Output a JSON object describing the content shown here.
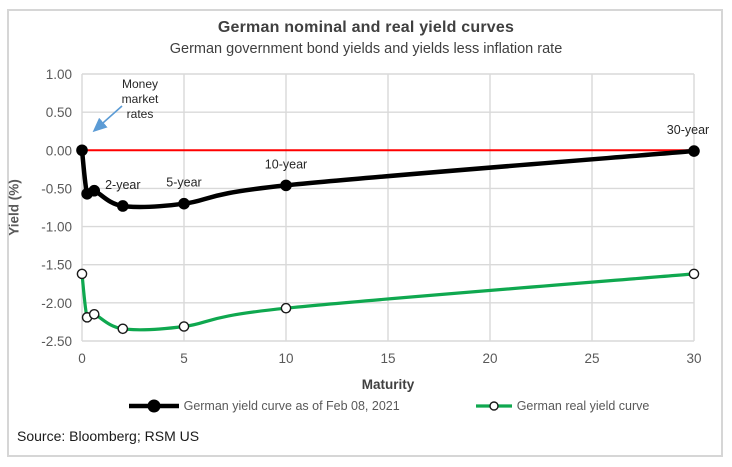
{
  "figure": {
    "title": "German nominal and real yield curves",
    "subtitle": "German government bond yields and yields less inflation rate",
    "source": "Source: Bloomberg; RSM US"
  },
  "chart_data": {
    "type": "line",
    "title": "German nominal and real yield curves",
    "subtitle": "German government bond yields and yields less inflation rate",
    "xlabel": "Maturity",
    "ylabel": "Yield (%)",
    "xlim": [
      0,
      30
    ],
    "ylim": [
      -2.5,
      1.0
    ],
    "x_ticks": [
      0,
      5,
      10,
      15,
      20,
      25,
      30
    ],
    "y_ticks": [
      1.0,
      0.5,
      0.0,
      -0.5,
      -1.0,
      -1.5,
      -2.0,
      -2.5
    ],
    "grid": true,
    "legend_position": "bottom",
    "zero_line": {
      "y": 0,
      "color": "#FF0000"
    },
    "series": [
      {
        "name": "German yield curve as of Feb 08, 2021",
        "color": "#000000",
        "marker": "filled-circle",
        "x": [
          0,
          0.25,
          0.6,
          2,
          5,
          10,
          30
        ],
        "values": [
          0.0,
          -0.57,
          -0.53,
          -0.73,
          -0.7,
          -0.46,
          -0.01
        ]
      },
      {
        "name": "German real yield curve",
        "color": "#0FA84F",
        "marker": "open-circle",
        "x": [
          0,
          0.25,
          0.6,
          2,
          5,
          10,
          30
        ],
        "values": [
          -1.62,
          -2.19,
          -2.15,
          -2.34,
          -2.31,
          -2.07,
          -1.62
        ]
      }
    ],
    "point_labels": [
      {
        "text": "2-year",
        "x": 2,
        "y": -0.73
      },
      {
        "text": "5-year",
        "x": 5,
        "y": -0.7
      },
      {
        "text": "10-year",
        "x": 10,
        "y": -0.46
      },
      {
        "text": "30-year",
        "x": 30,
        "y": -0.01
      }
    ],
    "annotation": {
      "text": "Money\nmarket\nrates",
      "arrow_color": "#5B9BD5"
    },
    "colors": {
      "grid": "#d9d9d9",
      "tick_label": "#595959",
      "title_text": "#404040"
    }
  }
}
